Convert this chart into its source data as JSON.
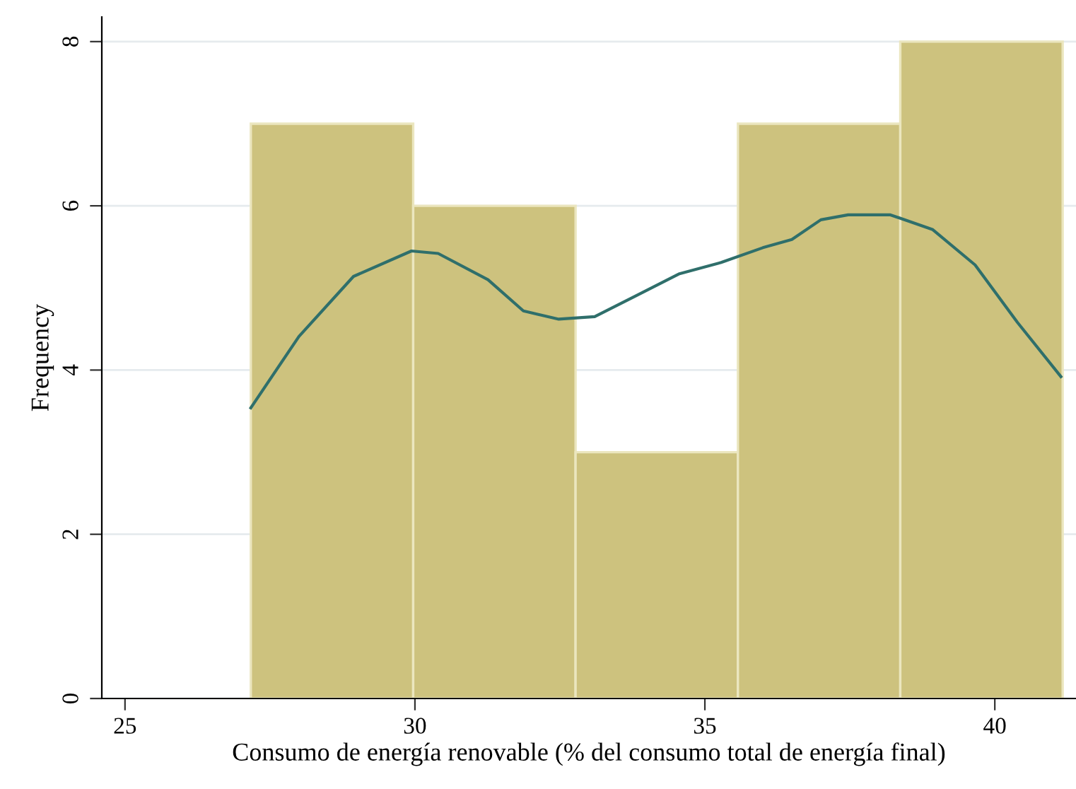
{
  "chart_data": {
    "type": "histogram",
    "xlabel": "Consumo de energía renovable (% del consumo total de energía final)",
    "ylabel": "Frequency",
    "bins": [
      27.17,
      29.97,
      32.77,
      35.57,
      38.37,
      41.17
    ],
    "values": [
      7,
      6,
      3,
      7,
      8
    ],
    "color": "#cdc27e",
    "series": [
      {
        "type": "line",
        "color": "#2f6f6b",
        "x": [
          27.17,
          28.0,
          28.94,
          29.94,
          30.4,
          31.26,
          31.87,
          32.48,
          33.1,
          33.8,
          34.55,
          35.28,
          36.0,
          36.5,
          37.0,
          37.47,
          38.2,
          38.93,
          39.66,
          40.39,
          41.14
        ],
        "values": [
          3.54,
          4.41,
          5.14,
          5.45,
          5.42,
          5.1,
          4.72,
          4.62,
          4.65,
          4.9,
          5.17,
          5.31,
          5.49,
          5.59,
          5.83,
          5.89,
          5.89,
          5.71,
          5.28,
          4.58,
          3.92
        ]
      }
    ],
    "xlim": [
      24.6,
      41.4
    ],
    "ylim": [
      0,
      8.3
    ],
    "xticks": [
      25,
      30,
      35,
      40
    ],
    "yticks": [
      0,
      2,
      4,
      6,
      8
    ],
    "grid": "y"
  }
}
